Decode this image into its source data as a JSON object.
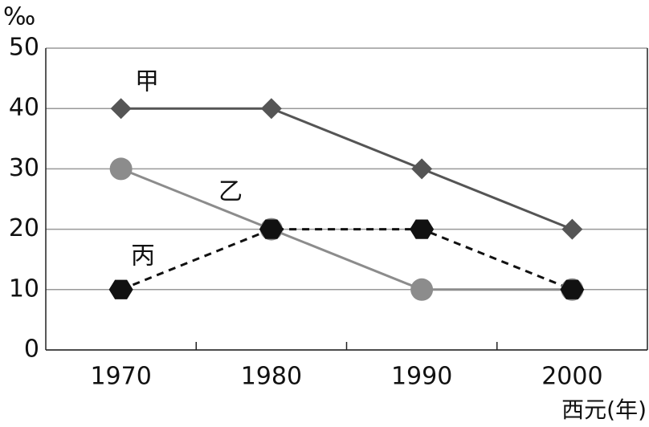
{
  "chart_data": {
    "type": "line",
    "y_label": "‰",
    "x_label": "西元(年)",
    "categories": [
      "1970",
      "1980",
      "1990",
      "2000"
    ],
    "series": [
      {
        "name": "甲",
        "color": "#555555",
        "marker": "diamond",
        "style": "solid",
        "values": [
          40,
          40,
          30,
          20
        ]
      },
      {
        "name": "乙",
        "color": "#8c8c8c",
        "marker": "circle",
        "style": "solid",
        "values": [
          30,
          20,
          10,
          10
        ]
      },
      {
        "name": "丙",
        "color": "#111111",
        "marker": "hexagon",
        "style": "dashed",
        "values": [
          10,
          20,
          20,
          10
        ]
      }
    ],
    "ylim": [
      0,
      50
    ],
    "yticks": [
      0,
      10,
      20,
      30,
      40,
      50
    ],
    "grid": true
  }
}
